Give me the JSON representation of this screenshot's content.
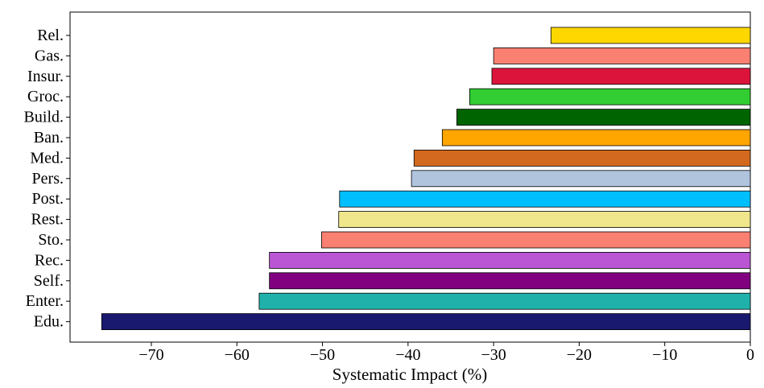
{
  "chart_data": {
    "type": "bar",
    "orientation": "horizontal",
    "title": "",
    "xlabel": "Systematic Impact (%)",
    "ylabel": "",
    "xlim": [
      -79.5,
      0
    ],
    "grid": false,
    "xticks": [
      {
        "value": -70,
        "label": "−70"
      },
      {
        "value": -60,
        "label": "−60"
      },
      {
        "value": -50,
        "label": "−50"
      },
      {
        "value": -40,
        "label": "−40"
      },
      {
        "value": -30,
        "label": "−30"
      },
      {
        "value": -20,
        "label": "−20"
      },
      {
        "value": -10,
        "label": "−10"
      },
      {
        "value": 0,
        "label": "0"
      }
    ],
    "categories": [
      "Rel.",
      "Gas.",
      "Insur.",
      "Groc.",
      "Build.",
      "Ban.",
      "Med.",
      "Pers.",
      "Post.",
      "Rest.",
      "Sto.",
      "Rec.",
      "Self.",
      "Enter.",
      "Edu."
    ],
    "values": [
      -23.3,
      -30.0,
      -30.2,
      -32.8,
      -34.3,
      -36.0,
      -39.3,
      -39.6,
      -48.0,
      -48.1,
      -50.1,
      -56.2,
      -56.2,
      -57.4,
      -75.8
    ],
    "colors": [
      "#FFD700",
      "#FA8072",
      "#DC143C",
      "#32CD32",
      "#006400",
      "#FFA500",
      "#D2691E",
      "#B0C4DE",
      "#00BFFF",
      "#F0E68C",
      "#FA8072",
      "#BA55D3",
      "#800080",
      "#20B2AA",
      "#191970"
    ]
  }
}
